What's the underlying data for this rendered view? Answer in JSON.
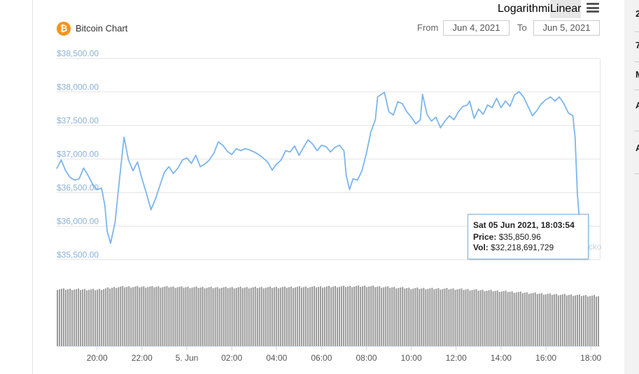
{
  "header": {
    "title": "Bitcoin Chart",
    "logo_glyph": "₿",
    "scale_options": [
      "Logarithmic",
      "Linear"
    ],
    "active_scale": "Linear",
    "from_label": "From",
    "from_value": "Jun 4, 2021",
    "to_label": "To",
    "to_value": "Jun 5, 2021"
  },
  "right_column": {
    "letters": [
      "2",
      "7",
      "M",
      "A",
      "A"
    ]
  },
  "watermark": "CoinGecko",
  "tooltip": {
    "date": "Sat 05 Jun 2021, 18:03:54",
    "price_label": "Price:",
    "price_value": "$35,850.96",
    "vol_label": "Vol:",
    "vol_value": "$32,218,691,729"
  },
  "colors": {
    "line": "#7cb5ec",
    "volume": "#999999",
    "accent": "#f7931a"
  },
  "chart_data": {
    "type": "line",
    "title": "Bitcoin Chart",
    "y_scale": "linear",
    "ylim": [
      35500,
      38500
    ],
    "y_ticks": [
      35500,
      36000,
      36500,
      37000,
      37500,
      38000,
      38500
    ],
    "y_tick_labels": [
      "$35,500.00",
      "$36,000.00",
      "$36,500.00",
      "$37,000.00",
      "$37,500.00",
      "$38,000.00",
      "$38,500.00"
    ],
    "x_ticks": [
      20,
      22,
      24,
      26,
      28,
      30,
      32,
      34,
      36,
      38,
      40,
      42
    ],
    "x_tick_labels": [
      "20:00",
      "22:00",
      "5. Jun",
      "02:00",
      "04:00",
      "06:00",
      "08:00",
      "10:00",
      "12:00",
      "14:00",
      "16:00",
      "18:00"
    ],
    "xlim": [
      18.2,
      42.4
    ],
    "series": [
      {
        "values": [
          [
            18.2,
            36850
          ],
          [
            18.4,
            36980
          ],
          [
            18.6,
            36820
          ],
          [
            18.8,
            36720
          ],
          [
            19.0,
            36680
          ],
          [
            19.2,
            36700
          ],
          [
            19.4,
            36860
          ],
          [
            19.6,
            36750
          ],
          [
            19.8,
            36620
          ],
          [
            20.0,
            36540
          ],
          [
            20.2,
            36560
          ],
          [
            20.35,
            36300
          ],
          [
            20.45,
            35920
          ],
          [
            20.6,
            35740
          ],
          [
            20.8,
            36050
          ],
          [
            21.0,
            36700
          ],
          [
            21.2,
            37320
          ],
          [
            21.4,
            36980
          ],
          [
            21.6,
            36820
          ],
          [
            21.8,
            36950
          ],
          [
            22.0,
            36700
          ],
          [
            22.2,
            36480
          ],
          [
            22.4,
            36240
          ],
          [
            22.6,
            36400
          ],
          [
            22.8,
            36600
          ],
          [
            23.0,
            36800
          ],
          [
            23.2,
            36880
          ],
          [
            23.4,
            36780
          ],
          [
            23.6,
            36860
          ],
          [
            23.8,
            36980
          ],
          [
            24.0,
            37010
          ],
          [
            24.2,
            36930
          ],
          [
            24.4,
            37050
          ],
          [
            24.6,
            36880
          ],
          [
            24.8,
            36920
          ],
          [
            25.0,
            36980
          ],
          [
            25.2,
            37080
          ],
          [
            25.4,
            37250
          ],
          [
            25.6,
            37200
          ],
          [
            25.8,
            37110
          ],
          [
            26.0,
            37060
          ],
          [
            26.2,
            37150
          ],
          [
            26.4,
            37120
          ],
          [
            26.6,
            37150
          ],
          [
            26.8,
            37130
          ],
          [
            27.0,
            37100
          ],
          [
            27.2,
            37060
          ],
          [
            27.4,
            37010
          ],
          [
            27.6,
            36950
          ],
          [
            27.8,
            36830
          ],
          [
            28.0,
            36920
          ],
          [
            28.2,
            36980
          ],
          [
            28.4,
            37120
          ],
          [
            28.6,
            37100
          ],
          [
            28.8,
            37190
          ],
          [
            29.0,
            37050
          ],
          [
            29.2,
            37170
          ],
          [
            29.4,
            37280
          ],
          [
            29.6,
            37220
          ],
          [
            29.8,
            37120
          ],
          [
            30.0,
            37200
          ],
          [
            30.2,
            37180
          ],
          [
            30.4,
            37100
          ],
          [
            30.6,
            37170
          ],
          [
            30.8,
            37200
          ],
          [
            31.0,
            37120
          ],
          [
            31.1,
            36750
          ],
          [
            31.25,
            36540
          ],
          [
            31.4,
            36700
          ],
          [
            31.6,
            36680
          ],
          [
            31.8,
            36820
          ],
          [
            32.0,
            37080
          ],
          [
            32.2,
            37400
          ],
          [
            32.4,
            37580
          ],
          [
            32.5,
            37920
          ],
          [
            32.8,
            37990
          ],
          [
            33.0,
            37700
          ],
          [
            33.2,
            37650
          ],
          [
            33.4,
            37850
          ],
          [
            33.6,
            37820
          ],
          [
            33.8,
            37700
          ],
          [
            34.0,
            37620
          ],
          [
            34.2,
            37520
          ],
          [
            34.4,
            37580
          ],
          [
            34.5,
            37960
          ],
          [
            34.7,
            37660
          ],
          [
            34.9,
            37560
          ],
          [
            35.1,
            37620
          ],
          [
            35.3,
            37460
          ],
          [
            35.5,
            37560
          ],
          [
            35.7,
            37640
          ],
          [
            35.9,
            37580
          ],
          [
            36.1,
            37700
          ],
          [
            36.3,
            37780
          ],
          [
            36.5,
            37800
          ],
          [
            36.6,
            37860
          ],
          [
            36.8,
            37600
          ],
          [
            37.0,
            37740
          ],
          [
            37.2,
            37660
          ],
          [
            37.4,
            37800
          ],
          [
            37.6,
            37760
          ],
          [
            37.8,
            37900
          ],
          [
            38.0,
            37760
          ],
          [
            38.2,
            37860
          ],
          [
            38.4,
            37780
          ],
          [
            38.6,
            37950
          ],
          [
            38.8,
            38000
          ],
          [
            39.0,
            37920
          ],
          [
            39.2,
            37780
          ],
          [
            39.4,
            37640
          ],
          [
            39.6,
            37720
          ],
          [
            39.8,
            37820
          ],
          [
            40.0,
            37880
          ],
          [
            40.2,
            37920
          ],
          [
            40.4,
            37860
          ],
          [
            40.6,
            37920
          ],
          [
            40.8,
            37820
          ],
          [
            41.0,
            37680
          ],
          [
            41.2,
            37640
          ],
          [
            41.3,
            37320
          ],
          [
            41.4,
            36480
          ],
          [
            41.55,
            35850
          ]
        ]
      }
    ],
    "volume": {
      "xlim": [
        18.2,
        42.4
      ],
      "profile": [
        [
          18.2,
          0.8
        ],
        [
          20.0,
          0.79
        ],
        [
          21.0,
          0.83
        ],
        [
          23.0,
          0.83
        ],
        [
          25.0,
          0.82
        ],
        [
          27.0,
          0.82
        ],
        [
          30.0,
          0.83
        ],
        [
          32.0,
          0.84
        ],
        [
          34.0,
          0.81
        ],
        [
          36.0,
          0.8
        ],
        [
          38.0,
          0.77
        ],
        [
          40.0,
          0.73
        ],
        [
          42.4,
          0.7
        ]
      ]
    }
  }
}
